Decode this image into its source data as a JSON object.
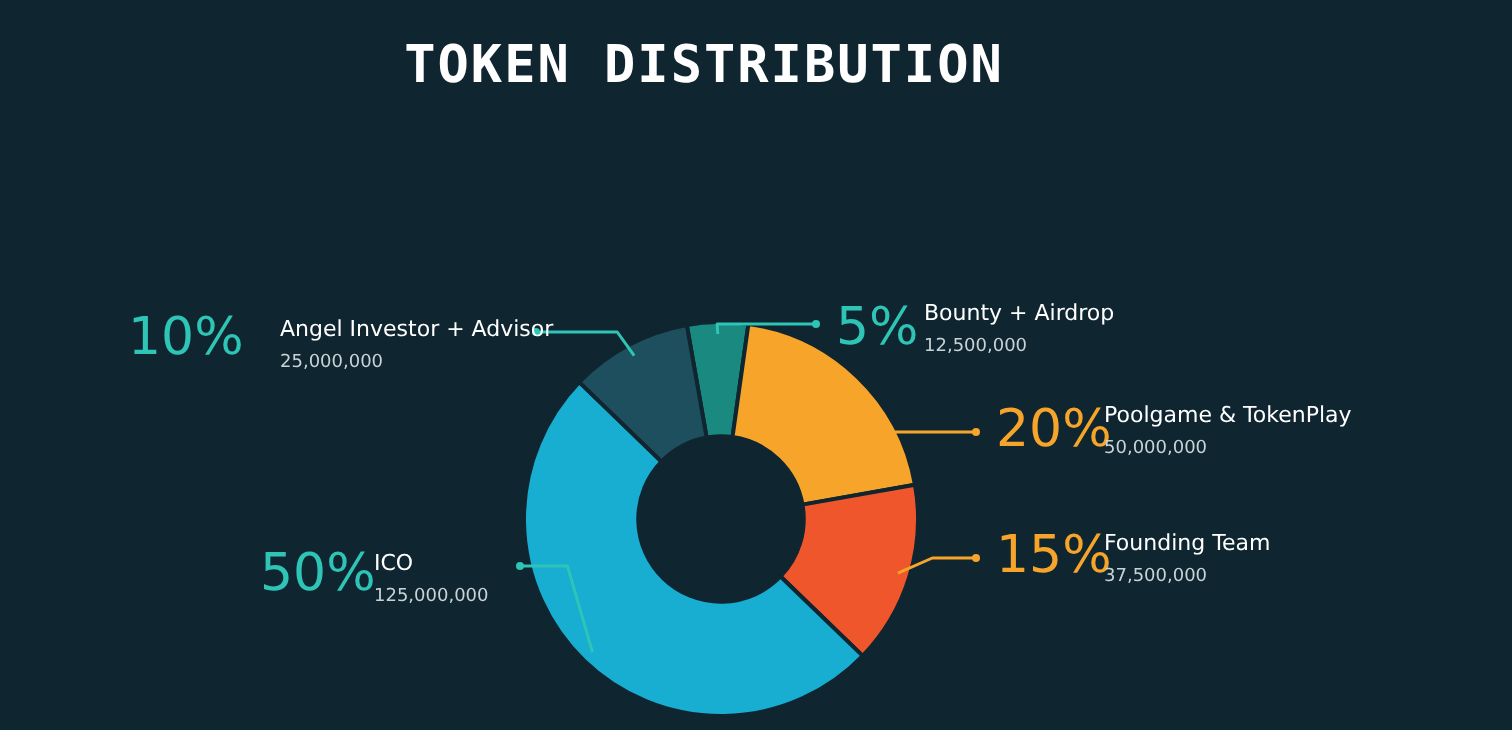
{
  "chart_data": {
    "type": "donut",
    "title": "TOKEN DISTRIBUTION",
    "categories": [
      "Bounty + Airdrop",
      "Poolgame & TokenPlay",
      "Founding Team",
      "ICO",
      "Angel Investor + Advisor"
    ],
    "values": [
      5,
      20,
      15,
      50,
      10
    ],
    "annotations": [
      "12,500,000",
      "50,000,000",
      "37,500,000",
      "125,000,000",
      "25,000,000"
    ],
    "value_labels": [
      "5%",
      "20%",
      "15%",
      "50%",
      "10%"
    ],
    "colors": [
      "#1a8a80",
      "#f7a52a",
      "#f0562b",
      "#17aed2",
      "#1e4f5e"
    ]
  }
}
